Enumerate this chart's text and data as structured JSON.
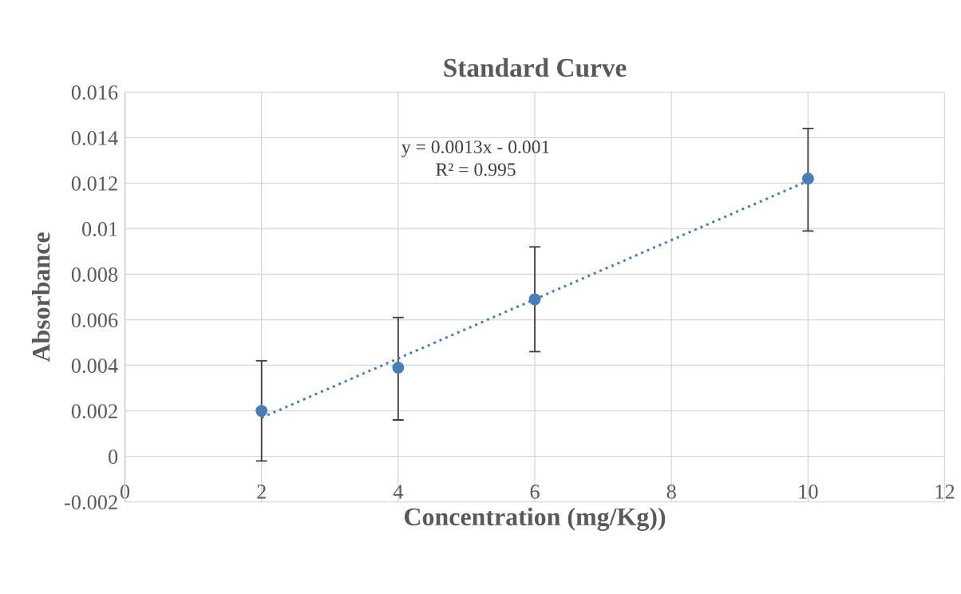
{
  "chart_data": {
    "type": "scatter",
    "title": "Standard Curve",
    "xlabel": "Concentration (mg/Kg))",
    "ylabel": "Absorbance",
    "series": [
      {
        "color": "#4a7ebb",
        "x": [
          2,
          4,
          6,
          10
        ],
        "values": [
          0.002,
          0.0039,
          0.0069,
          0.0122
        ],
        "errors": [
          [
            -0.0002,
            0.0042
          ],
          [
            0.0016,
            0.0061
          ],
          [
            0.0046,
            0.0092
          ],
          [
            0.0099,
            0.0144
          ]
        ],
        "marker": "circle"
      },
      {
        "type": "line",
        "color": "#4a7ebb",
        "x": [
          2,
          10
        ],
        "values": [
          0.0017,
          0.0121
        ],
        "line_style": "dotted",
        "marker": "none"
      }
    ],
    "annotations": [
      "y = 0.0013x - 0.001",
      "R² = 0.995"
    ],
    "xlim": [
      0,
      12
    ],
    "xticks": [
      0,
      2,
      4,
      6,
      8,
      10,
      12
    ],
    "ylim": [
      -0.002,
      0.016
    ],
    "yticks": [
      -0.002,
      0,
      0.002,
      0.004,
      0.006,
      0.008,
      0.01,
      0.012,
      0.014,
      0.016
    ],
    "grid": true
  }
}
